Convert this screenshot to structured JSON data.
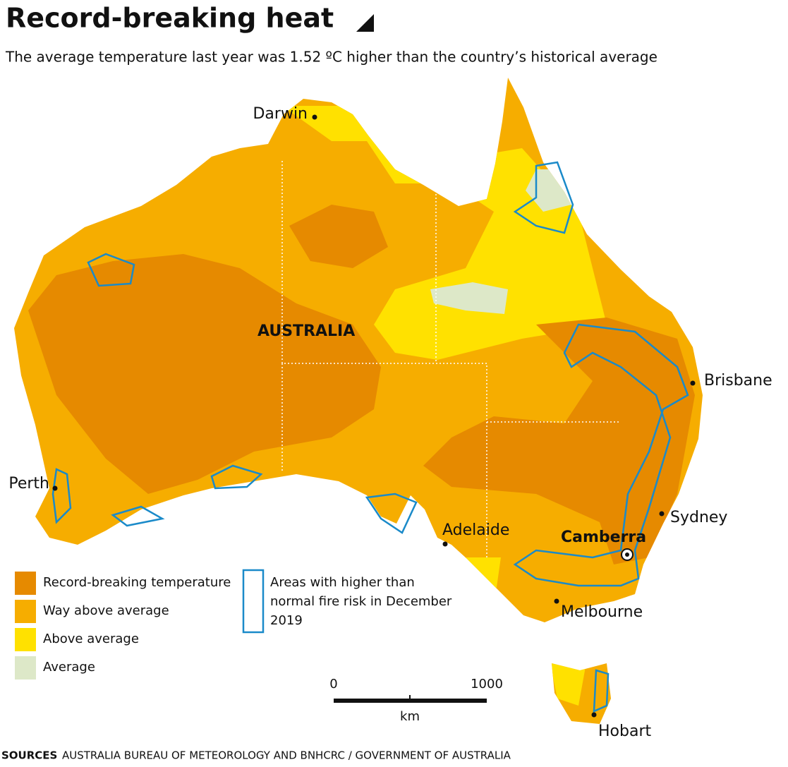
{
  "header": {
    "title": "Record-breaking heat",
    "subtitle": "The average temperature last year was 1.52 ºC higher than the country’s historical average"
  },
  "map": {
    "region_label": "AUSTRALIA",
    "cities": [
      {
        "label": "Darwin"
      },
      {
        "label": "Perth"
      },
      {
        "label": "Adelaide"
      },
      {
        "label": "Brisbane"
      },
      {
        "label": "Sydney"
      },
      {
        "label": "Camberra"
      },
      {
        "label": "Melbourne"
      },
      {
        "label": "Hobart"
      }
    ]
  },
  "legend": {
    "items": [
      {
        "label": "Record-breaking temperature",
        "color": "#e68a00"
      },
      {
        "label": "Way above average",
        "color": "#f6ad00"
      },
      {
        "label": "Above average",
        "color": "#ffe100"
      },
      {
        "label": "Average",
        "color": "#dde8c8"
      }
    ],
    "fire_risk": [
      "Areas with higher than",
      "normal fire risk in December",
      "2019"
    ]
  },
  "scale": {
    "start": "0",
    "end": "1000",
    "unit": "km"
  },
  "footer": {
    "sources_label": "SOURCES",
    "sources": "AUSTRALIA BUREAU OF METEOROLOGY AND BNHCRC / GOVERNMENT OF AUSTRALIA"
  }
}
